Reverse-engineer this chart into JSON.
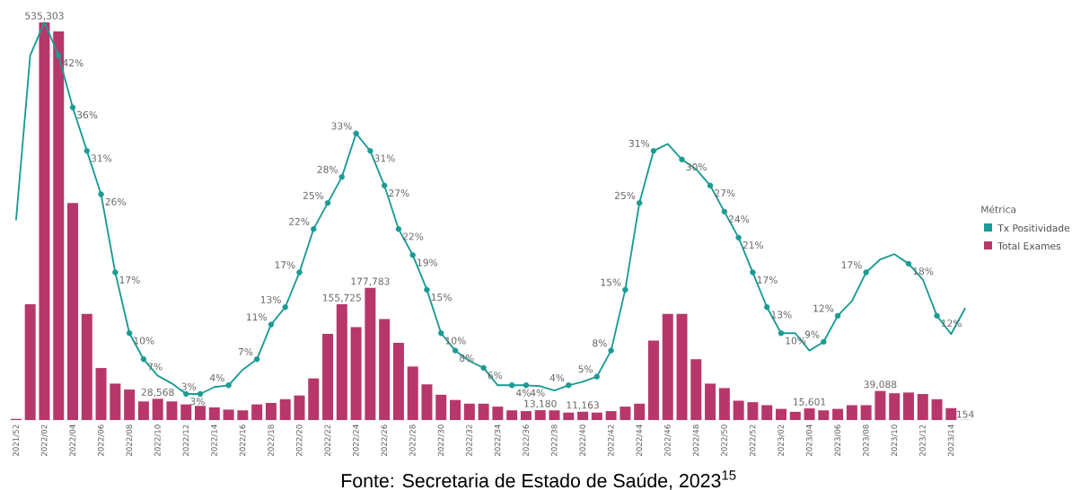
{
  "chart_data": {
    "type": "bar",
    "categories": [
      "2021/52",
      null,
      "2022/02",
      null,
      "2022/04",
      null,
      "2022/06",
      null,
      "2022/08",
      null,
      "2022/10",
      null,
      "2022/12",
      null,
      "2022/14",
      null,
      "2022/16",
      null,
      "2022/18",
      null,
      "2022/20",
      null,
      "2022/22",
      null,
      "2022/24",
      null,
      "2022/26",
      null,
      "2022/28",
      null,
      "2022/30",
      null,
      "2022/32",
      null,
      "2022/34",
      null,
      "2022/36",
      null,
      "2022/38",
      null,
      "2022/40",
      null,
      "2022/42",
      null,
      "2022/44",
      null,
      "2022/46",
      null,
      "2022/48",
      null,
      "2022/50",
      null,
      "2022/52",
      null,
      "2023/02",
      null,
      "2023/04",
      null,
      "2023/06",
      null,
      "2023/08",
      null,
      "2023/10",
      null,
      "2023/12",
      null,
      "2023/14",
      null
    ],
    "series": [
      {
        "name": "Tx Positividade",
        "type": "line",
        "axis": "y2",
        "color": "#1a9b94",
        "marker": "circle",
        "values": [
          23.0,
          42.0,
          45.8,
          42,
          36,
          31,
          26,
          17,
          10,
          7,
          5.1,
          4.2,
          3,
          3,
          3.8,
          4,
          5.8,
          7,
          11,
          13,
          17,
          22,
          25,
          28,
          33,
          31,
          27,
          22,
          19,
          15,
          10,
          8,
          6.8,
          6,
          4.0,
          4,
          4,
          3.9,
          3.4,
          4,
          4.4,
          5,
          8,
          15,
          25,
          31,
          31.8,
          30,
          28.9,
          27,
          24,
          21,
          17,
          13,
          10,
          10,
          8.0,
          9,
          12,
          13.7,
          17,
          18.5,
          19.1,
          18,
          16.2,
          12,
          9.9,
          12.9
        ],
        "value_labels": [
          null,
          null,
          null,
          "42%",
          "36%",
          "31%",
          "26%",
          "17%",
          "10%",
          "7%",
          null,
          null,
          "3%",
          "3%",
          null,
          "4%",
          null,
          "7%",
          "11%",
          "13%",
          "17%",
          "22%",
          "25%",
          "28%",
          "33%",
          "31%",
          "27%",
          "22%",
          "19%",
          "15%",
          "10%",
          "8%",
          null,
          "6%",
          null,
          "4%",
          "4%",
          null,
          null,
          "4%",
          null,
          "5%",
          "8%",
          "15%",
          "25%",
          "31%",
          null,
          "30%",
          null,
          "27%",
          "24%",
          "21%",
          "17%",
          "13%",
          "10%",
          null,
          null,
          "9%",
          "12%",
          null,
          "17%",
          null,
          null,
          "18%",
          null,
          "12%",
          null,
          null
        ]
      },
      {
        "name": "Total Exames",
        "axis": "y",
        "color": "#b8376a",
        "values": [
          1500,
          156000,
          535303,
          523000,
          292000,
          143000,
          70000,
          49000,
          41000,
          25000,
          28568,
          25000,
          21000,
          19000,
          17000,
          14000,
          13000,
          21000,
          23000,
          28000,
          33000,
          56000,
          116000,
          155725,
          125000,
          177783,
          136000,
          104000,
          72000,
          48000,
          34000,
          27000,
          22000,
          22000,
          18000,
          13000,
          12000,
          13180,
          13000,
          10000,
          11163,
          10000,
          12000,
          18000,
          22000,
          107000,
          143000,
          143000,
          82000,
          49000,
          43000,
          26000,
          24000,
          20000,
          15000,
          11000,
          15601,
          13000,
          15000,
          20000,
          20000,
          39088,
          36000,
          37000,
          35000,
          28000,
          16000,
          154
        ],
        "value_labels": [
          null,
          null,
          "535,303",
          null,
          null,
          null,
          null,
          null,
          null,
          null,
          "28,568",
          null,
          null,
          null,
          null,
          null,
          null,
          null,
          null,
          null,
          null,
          null,
          null,
          "155,725",
          null,
          "177,783",
          null,
          null,
          null,
          null,
          null,
          null,
          null,
          null,
          null,
          null,
          null,
          "13,180",
          null,
          null,
          "11,163",
          null,
          null,
          null,
          null,
          null,
          null,
          null,
          null,
          null,
          null,
          null,
          null,
          null,
          null,
          null,
          "15,601",
          null,
          null,
          null,
          null,
          "39,088",
          null,
          null,
          null,
          null,
          null,
          "154"
        ]
      }
    ],
    "tick_labels": "x",
    "legend": "right",
    "legend_title": "Métrica",
    "annotations": [
      "Fonte: Secretaria de Estado de Saúde, 2023$^{15}$"
    ]
  }
}
